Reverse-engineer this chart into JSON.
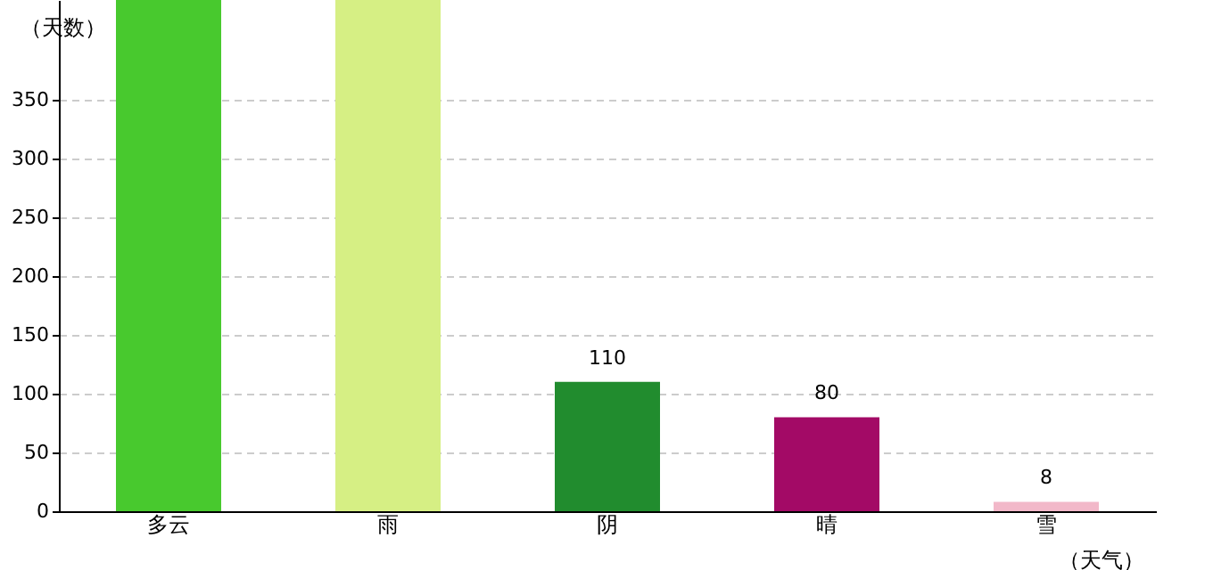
{
  "chart_data": {
    "type": "bar",
    "xlabel": "（天气）",
    "ylabel": "（天数）",
    "categories": [
      "多云",
      "雨",
      "阴",
      "晴",
      "雪"
    ],
    "values": [
      435,
      435,
      110,
      80,
      8
    ],
    "colors": [
      "#48c92e",
      "#d6ef84",
      "#218c2e",
      "#a30a66",
      "#f2b8c9"
    ],
    "value_labels": [
      null,
      null,
      "110",
      "80",
      "8"
    ],
    "ylim": [
      0,
      435
    ],
    "yticks": [
      0,
      50,
      100,
      150,
      200,
      250,
      300,
      350
    ],
    "grid": "y"
  }
}
